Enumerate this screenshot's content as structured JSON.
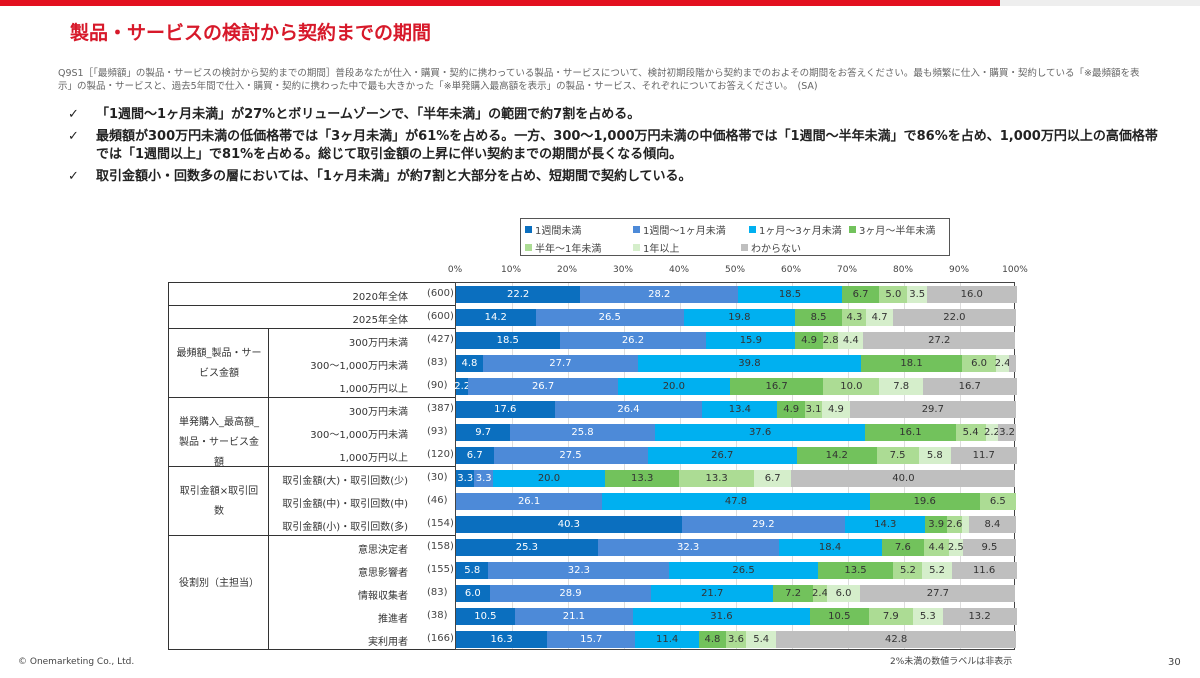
{
  "title": "製品・サービスの検討から契約までの期間",
  "question": "Q9S1［「最頻額」の製品・サービスの検討から契約までの期間］普段あなたが仕入・購買・契約に携わっている製品・サービスについて、検討初期段階から契約までのおよその期間をお答えください。最も頻繁に仕入・購買・契約している「※最頻額を表示」の製品・サービスと、過去5年間で仕入・購買・契約に携わった中で最も大きかった「※単発購入最高額を表示」の製品・サービス、それぞれについてお答えください。　(SA)",
  "bullets": [
    "「1週間～1ヶ月未満」が27%とボリュームゾーンで、「半年未満」の範囲で約7割を占める。",
    "最頻額が300万円未満の低価格帯では「3ヶ月未満」が61%を占める。一方、300～1,000万円未満の中価格帯では「1週間～半年未満」で86%を占め、1,000万円以上の高価格帯では「1週間以上」で81%を占める。総じて取引金額の上昇に伴い契約までの期間が長くなる傾向。",
    "取引金額小・回数多の層においては、「1ヶ月未満」が約7割と大部分を占め、短期間で契約している。"
  ],
  "check_mark": "✓",
  "note": "2%未満の数値ラベルは非表示",
  "copyright": "© Onemarketing Co., Ltd.",
  "page_number": "30",
  "chart_data": {
    "type": "bar",
    "orientation": "horizontal",
    "stacked": "100%",
    "xlim": [
      0,
      100
    ],
    "x_ticks": [
      "0%",
      "10%",
      "20%",
      "30%",
      "40%",
      "50%",
      "60%",
      "70%",
      "80%",
      "90%",
      "100%"
    ],
    "grid": true,
    "legend_position": "top",
    "label_threshold": 2,
    "series": [
      {
        "name": "1週間未満",
        "color": "#0b6fbf"
      },
      {
        "name": "1週間～1ヶ月未満",
        "color": "#4d8ad8"
      },
      {
        "name": "1ヶ月～3ヶ月未満",
        "color": "#00b0f0"
      },
      {
        "name": "3ヶ月～半年未満",
        "color": "#72c25c"
      },
      {
        "name": "半年～1年未満",
        "color": "#acdc94"
      },
      {
        "name": "1年以上",
        "color": "#d5eecb"
      },
      {
        "name": "わからない",
        "color": "#bfbfbf"
      }
    ],
    "groups": [
      {
        "label": "",
        "rows": [
          0
        ]
      },
      {
        "label": "",
        "rows": [
          1
        ]
      },
      {
        "label": "最頻額_製品・サービス金額",
        "rows": [
          2,
          3,
          4
        ]
      },
      {
        "label": "単発購入_最高額_製品・サービス金額",
        "rows": [
          5,
          6,
          7
        ]
      },
      {
        "label": "取引金額×取引回数",
        "rows": [
          8,
          9,
          10
        ]
      },
      {
        "label": "役割別（主担当）",
        "rows": [
          11,
          12,
          13,
          14,
          15
        ]
      }
    ],
    "rows": [
      {
        "label": "2020年全体",
        "n": "(600)",
        "values": [
          22.2,
          28.2,
          18.5,
          6.7,
          5.0,
          3.5,
          16.0
        ]
      },
      {
        "label": "2025年全体",
        "n": "(600)",
        "values": [
          14.2,
          26.5,
          19.8,
          8.5,
          4.3,
          4.7,
          22.0
        ]
      },
      {
        "label": "300万円未満",
        "n": "(427)",
        "values": [
          18.5,
          26.2,
          15.9,
          4.9,
          2.8,
          4.4,
          27.2
        ]
      },
      {
        "label": "300～1,000万円未満",
        "n": "(83)",
        "values": [
          4.8,
          27.7,
          39.8,
          18.1,
          6.0,
          2.4,
          1.2
        ]
      },
      {
        "label": "1,000万円以上",
        "n": "(90)",
        "values": [
          2.2,
          26.7,
          20.0,
          16.7,
          10.0,
          7.8,
          16.7
        ]
      },
      {
        "label": "300万円未満",
        "n": "(387)",
        "values": [
          17.6,
          26.4,
          13.4,
          4.9,
          3.1,
          4.9,
          29.7
        ]
      },
      {
        "label": "300～1,000万円未満",
        "n": "(93)",
        "values": [
          9.7,
          25.8,
          37.6,
          16.1,
          5.4,
          2.2,
          3.2
        ]
      },
      {
        "label": "1,000万円以上",
        "n": "(120)",
        "values": [
          6.7,
          27.5,
          26.7,
          14.2,
          7.5,
          5.8,
          11.7
        ]
      },
      {
        "label": "取引金額(大)・取引回数(少)",
        "n": "(30)",
        "values": [
          3.3,
          3.3,
          20.0,
          13.3,
          13.3,
          6.7,
          40.0
        ]
      },
      {
        "label": "取引金額(中)・取引回数(中)",
        "n": "(46)",
        "values": [
          0,
          26.1,
          47.8,
          19.6,
          6.5,
          0,
          0
        ]
      },
      {
        "label": "取引金額(小)・取引回数(多)",
        "n": "(154)",
        "values": [
          40.3,
          29.2,
          14.3,
          3.9,
          2.6,
          1.3,
          8.4
        ]
      },
      {
        "label": "意思決定者",
        "n": "(158)",
        "values": [
          25.3,
          32.3,
          18.4,
          7.6,
          4.4,
          2.5,
          9.5
        ]
      },
      {
        "label": "意思影響者",
        "n": "(155)",
        "values": [
          5.8,
          32.3,
          26.5,
          13.5,
          5.2,
          5.2,
          11.6
        ]
      },
      {
        "label": "情報収集者",
        "n": "(83)",
        "values": [
          6.0,
          28.9,
          21.7,
          7.2,
          2.4,
          6.0,
          27.7
        ]
      },
      {
        "label": "推進者",
        "n": "(38)",
        "values": [
          10.5,
          21.1,
          31.6,
          10.5,
          7.9,
          5.3,
          13.2
        ]
      },
      {
        "label": "実利用者",
        "n": "(166)",
        "values": [
          16.3,
          15.7,
          11.4,
          4.8,
          3.6,
          5.4,
          42.8
        ]
      }
    ]
  }
}
